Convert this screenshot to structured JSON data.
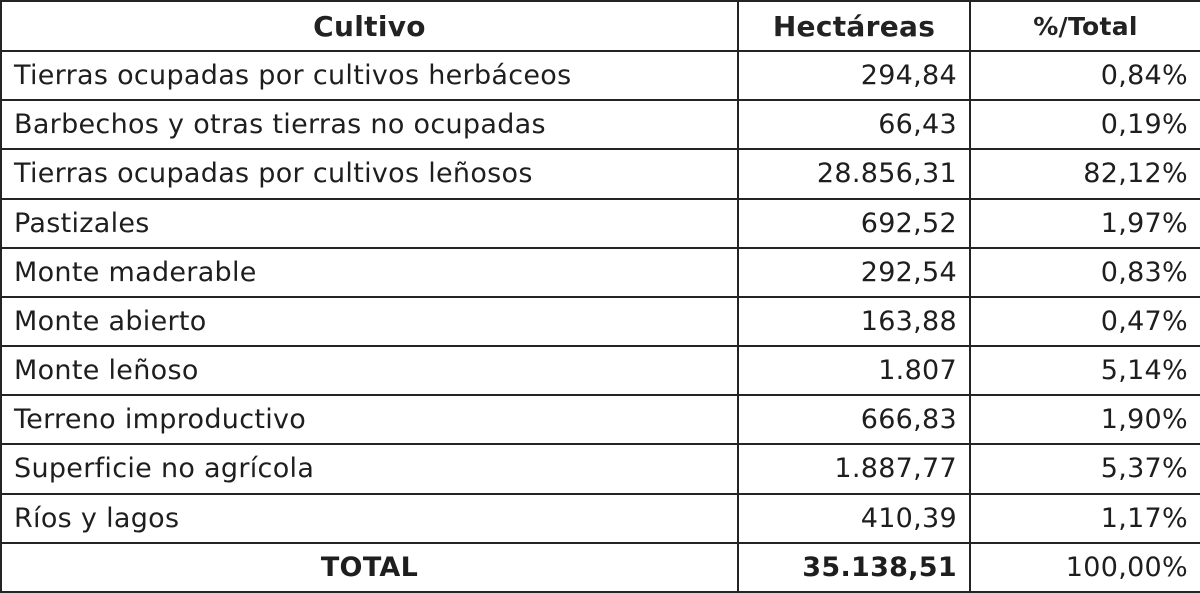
{
  "table": {
    "headers": {
      "crop": "Cultivo",
      "hectares": "Hectáreas",
      "percent": "%/Total"
    },
    "rows": [
      {
        "crop": "Tierras ocupadas por cultivos herbáceos",
        "hectares": "294,84",
        "percent": "0,84%"
      },
      {
        "crop": "Barbechos y otras tierras no ocupadas",
        "hectares": "66,43",
        "percent": "0,19%"
      },
      {
        "crop": "Tierras ocupadas por cultivos leñosos",
        "hectares": "28.856,31",
        "percent": "82,12%"
      },
      {
        "crop": "Pastizales",
        "hectares": "692,52",
        "percent": "1,97%"
      },
      {
        "crop": "Monte maderable",
        "hectares": "292,54",
        "percent": "0,83%"
      },
      {
        "crop": "Monte abierto",
        "hectares": "163,88",
        "percent": "0,47%"
      },
      {
        "crop": "Monte leñoso",
        "hectares": "1.807",
        "percent": "5,14%"
      },
      {
        "crop": "Terreno improductivo",
        "hectares": "666,83",
        "percent": "1,90%"
      },
      {
        "crop": "Superficie no agrícola",
        "hectares": "1.887,77",
        "percent": "5,37%"
      },
      {
        "crop": "Ríos y lagos",
        "hectares": "410,39",
        "percent": "1,17%"
      }
    ],
    "total": {
      "label": "TOTAL",
      "hectares": "35.138,51",
      "percent": "100,00%"
    }
  }
}
